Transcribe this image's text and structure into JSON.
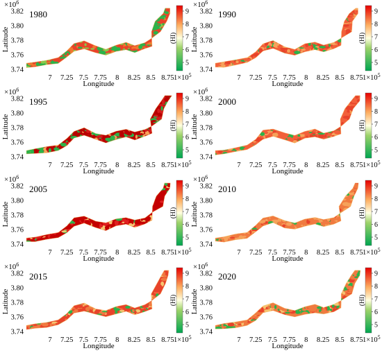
{
  "figure": {
    "axis_labels": {
      "x": "Longitude",
      "y": "Latitude"
    },
    "y_ticks": [
      "3.74",
      "3.76",
      "3.78",
      "3.80",
      "3.82"
    ],
    "x_ticks": [
      "7",
      "7.25",
      "7.5",
      "7.75",
      "8",
      "8.25",
      "8.5",
      "8.75"
    ],
    "y_exponent": "×10",
    "y_exponent_power": "6",
    "x_exponent": "×10",
    "x_exponent_power": "5",
    "colorbar_label": "(HI)",
    "colorbar_ticks": [
      "5",
      "6",
      "7",
      "8",
      "9"
    ],
    "colors": {
      "low": "#00a651",
      "mid": "#ffffe0",
      "high": "#e60000"
    }
  },
  "chart_data": [
    {
      "type": "heatmap",
      "title": "1980",
      "xlabel": "Longitude",
      "ylabel": "Latitude",
      "colorbar": "(HI)",
      "x_unit": "×10^5",
      "y_unit": "×10^6",
      "ylim": [
        3.74,
        3.83
      ],
      "xlim": [
        6.75,
        9.0
      ],
      "clim": [
        4.5,
        9.5
      ],
      "dominant": "mixed red/green"
    },
    {
      "type": "heatmap",
      "title": "1990",
      "xlabel": "Longitude",
      "ylabel": "Latitude",
      "colorbar": "(HI)",
      "x_unit": "×10^5",
      "y_unit": "×10^6",
      "ylim": [
        3.74,
        3.83
      ],
      "xlim": [
        6.75,
        9.0
      ],
      "clim": [
        4.5,
        9.5
      ],
      "dominant": "mostly orange/red"
    },
    {
      "type": "heatmap",
      "title": "1995",
      "xlabel": "Longitude",
      "ylabel": "Latitude",
      "colorbar": "(HI)",
      "x_unit": "×10^5",
      "y_unit": "×10^6",
      "ylim": [
        3.74,
        3.83
      ],
      "xlim": [
        6.75,
        9.0
      ],
      "clim": [
        4.5,
        9.5
      ],
      "dominant": "dark red with green"
    },
    {
      "type": "heatmap",
      "title": "2000",
      "xlabel": "Longitude",
      "ylabel": "Latitude",
      "colorbar": "(HI)",
      "x_unit": "×10^5",
      "y_unit": "×10^6",
      "ylim": [
        3.74,
        3.83
      ],
      "xlim": [
        6.75,
        9.0
      ],
      "clim": [
        4.5,
        9.5
      ],
      "dominant": "orange/red"
    },
    {
      "type": "heatmap",
      "title": "2005",
      "xlabel": "Longitude",
      "ylabel": "Latitude",
      "colorbar": "(HI)",
      "x_unit": "×10^5",
      "y_unit": "×10^6",
      "ylim": [
        3.74,
        3.83
      ],
      "xlim": [
        6.75,
        9.0
      ],
      "clim": [
        4.5,
        9.5
      ],
      "dominant": "dark red"
    },
    {
      "type": "heatmap",
      "title": "2010",
      "xlabel": "Longitude",
      "ylabel": "Latitude",
      "colorbar": "(HI)",
      "x_unit": "×10^5",
      "y_unit": "×10^6",
      "ylim": [
        3.74,
        3.83
      ],
      "xlim": [
        6.75,
        9.0
      ],
      "clim": [
        4.5,
        9.5
      ],
      "dominant": "orange"
    },
    {
      "type": "heatmap",
      "title": "2015",
      "xlabel": "Longitude",
      "ylabel": "Latitude",
      "colorbar": "(HI)",
      "x_unit": "×10^5",
      "y_unit": "×10^6",
      "ylim": [
        3.74,
        3.83
      ],
      "xlim": [
        6.75,
        9.0
      ],
      "clim": [
        4.5,
        9.5
      ],
      "dominant": "red/orange"
    },
    {
      "type": "heatmap",
      "title": "2020",
      "xlabel": "Longitude",
      "ylabel": "Latitude",
      "colorbar": "(HI)",
      "x_unit": "×10^5",
      "y_unit": "×10^6",
      "ylim": [
        3.74,
        3.83
      ],
      "xlim": [
        6.75,
        9.0
      ],
      "clim": [
        4.5,
        9.5
      ],
      "dominant": "orange with green"
    }
  ]
}
